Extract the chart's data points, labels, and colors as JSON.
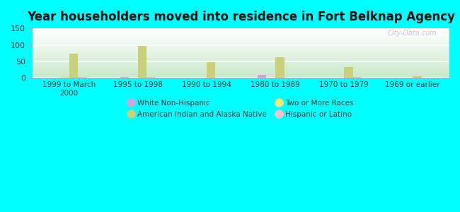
{
  "title": "Year householders moved into residence in Fort Belknap Agency",
  "categories": [
    "1999 to March\n2000",
    "1995 to 1998",
    "1990 to 1994",
    "1980 to 1989",
    "1970 to 1979",
    "1969 or earlier"
  ],
  "series": {
    "White Non-Hispanic": [
      2,
      3,
      0,
      10,
      2,
      0
    ],
    "Two or More Races": [
      3,
      0,
      0,
      0,
      0,
      0
    ],
    "American Indian and Alaska Native": [
      73,
      96,
      47,
      62,
      34,
      6
    ],
    "Hispanic or Latino": [
      4,
      3,
      1,
      0,
      3,
      0
    ]
  },
  "colors": {
    "White Non-Hispanic": "#c9a8e0",
    "Two or More Races": "#f0e87a",
    "American Indian and Alaska Native": "#c8d07a",
    "Hispanic or Latino": "#f5c0c8"
  },
  "ylim": [
    0,
    150
  ],
  "yticks": [
    0,
    50,
    100,
    150
  ],
  "figure_bg": "#00ffff",
  "plot_bg_top": "#ffffff",
  "plot_bg_bottom": "#c8e8c8",
  "bar_width": 0.13,
  "legend_order": [
    "White Non-Hispanic",
    "American Indian and Alaska Native",
    "Two or More Races",
    "Hispanic or Latino"
  ],
  "title_fontsize": 12,
  "watermark": "City-Data.com"
}
